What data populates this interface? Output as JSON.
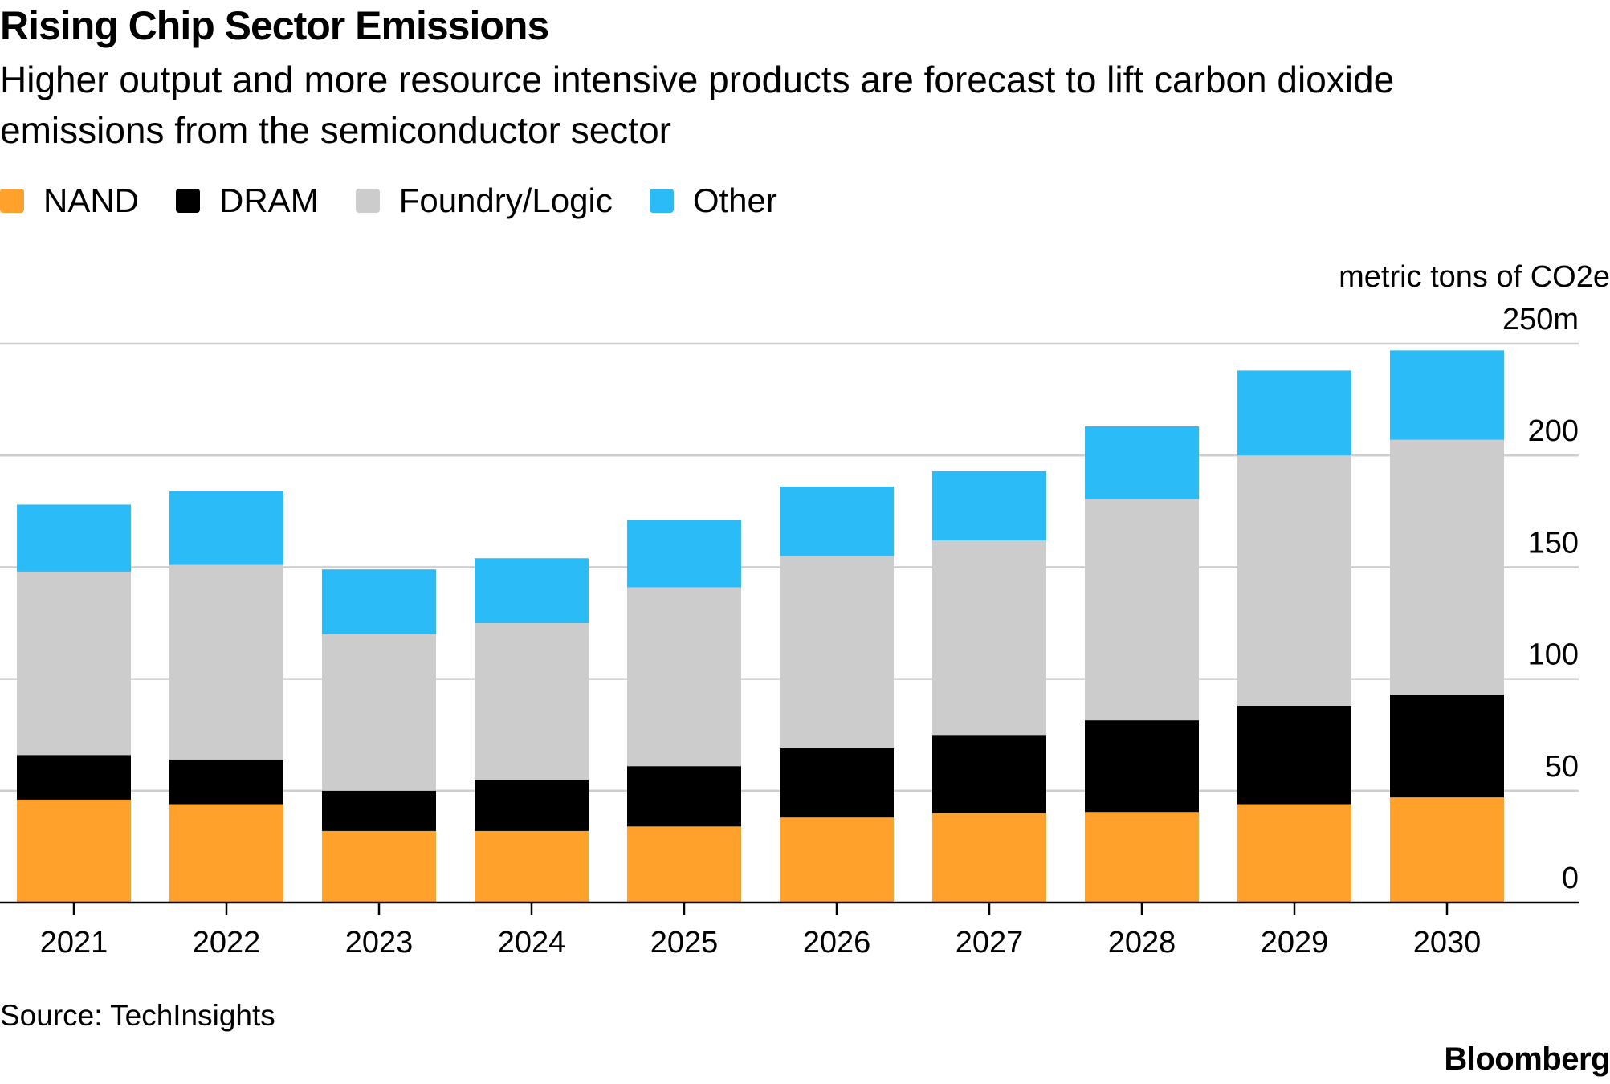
{
  "chart_data": {
    "type": "bar",
    "stacked": true,
    "title": "Rising Chip Sector Emissions",
    "subtitle": "Higher output and more resource intensive products are forecast to lift carbon dioxide emissions from the semiconductor sector",
    "categories": [
      "2021",
      "2022",
      "2023",
      "2024",
      "2025",
      "2026",
      "2027",
      "2028",
      "2029",
      "2030"
    ],
    "series": [
      {
        "name": "NAND",
        "color": "#FFA12B",
        "values": [
          46,
          44,
          32,
          32,
          34,
          38,
          40,
          40.5,
          44,
          47
        ]
      },
      {
        "name": "DRAM",
        "color": "#000000",
        "values": [
          20,
          20,
          18,
          23,
          27,
          31,
          35,
          41,
          44,
          46
        ]
      },
      {
        "name": "Foundry/Logic",
        "color": "#CCCCCC",
        "values": [
          82,
          87,
          70,
          70,
          80,
          86,
          87,
          99,
          112,
          114
        ]
      },
      {
        "name": "Other",
        "color": "#2BBBF7",
        "values": [
          30,
          33,
          29,
          29,
          30,
          31,
          31,
          32.5,
          38,
          40
        ]
      }
    ],
    "ylabel": "metric tons of CO2e",
    "ylim": [
      0,
      250
    ],
    "yticks": [
      0,
      50,
      100,
      150,
      200,
      250
    ],
    "ytick_labels": [
      "0",
      "50",
      "100",
      "150",
      "200",
      "250m"
    ],
    "grid": true,
    "legend_position": "top-left",
    "source": "Source: TechInsights"
  },
  "branding": {
    "logo": "Bloomberg"
  }
}
